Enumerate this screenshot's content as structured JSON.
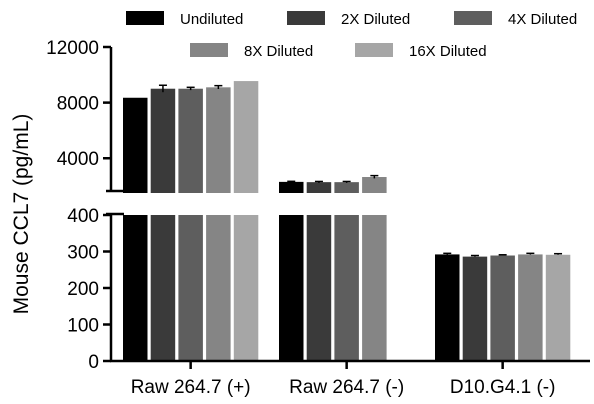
{
  "chart_data": {
    "type": "bar",
    "title": "",
    "xlabel": "",
    "ylabel": "Mouse CCL7 (pg/mL)",
    "categories": [
      "Raw 264.7 (+)",
      "Raw 264.7 (-)",
      "D10.G4.1 (-)"
    ],
    "series": [
      {
        "name": "Undiluted",
        "color": "#000000",
        "values": [
          8350,
          2300,
          292
        ],
        "errors": [
          0,
          40,
          3
        ]
      },
      {
        "name": "2X Diluted",
        "color": "#3a3a3a",
        "values": [
          9000,
          2280,
          286
        ],
        "errors": [
          250,
          50,
          3
        ]
      },
      {
        "name": "4X Diluted",
        "color": "#5e5e5e",
        "values": [
          9000,
          2280,
          289
        ],
        "errors": [
          100,
          50,
          2
        ]
      },
      {
        "name": "8X Diluted",
        "color": "#858585",
        "values": [
          9100,
          2650,
          292
        ],
        "errors": [
          120,
          100,
          3
        ]
      },
      {
        "name": "16X Diluted",
        "color": "#a6a6a6",
        "values": [
          9550,
          0,
          291
        ],
        "errors": [
          0,
          0,
          3
        ]
      }
    ],
    "axis_break": {
      "upper_segment": {
        "range": [
          1500,
          12000
        ],
        "ticks": [
          "4000",
          "8000",
          "12000"
        ]
      },
      "lower_segment": {
        "range": [
          0,
          400
        ],
        "ticks": [
          "0",
          "100",
          "200",
          "300",
          "400"
        ]
      }
    },
    "legend_position": "top",
    "grid": false
  }
}
